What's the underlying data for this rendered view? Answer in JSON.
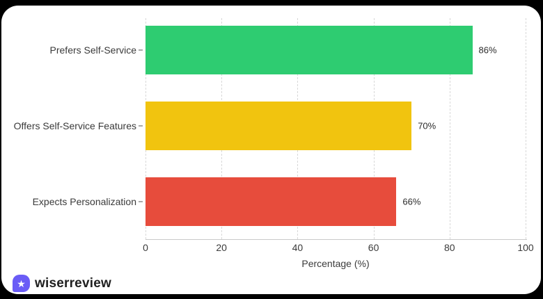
{
  "page": {
    "background": "#000000",
    "card_background": "#ffffff"
  },
  "chart_data": {
    "type": "bar",
    "orientation": "horizontal",
    "title": "",
    "xlabel": "Percentage (%)",
    "ylabel": "",
    "categories": [
      "Prefers Self-Service",
      "Offers Self-Service Features",
      "Expects Personalization"
    ],
    "values": [
      86,
      70,
      66
    ],
    "value_labels": [
      "86%",
      "70%",
      "66%"
    ],
    "bar_colors": [
      "#2ecc71",
      "#f1c40f",
      "#e74c3c"
    ],
    "xlim": [
      0,
      100
    ],
    "x_ticks": [
      0,
      20,
      40,
      60,
      80,
      100
    ],
    "grid": "vertical-dashed",
    "gridline_color": "#d8d8d8",
    "axis_line_color": "#c9c9c9",
    "tick_label_color": "#3a3a3a",
    "legend": "none"
  },
  "footer": {
    "brand": "wiserreview",
    "logo_glyph": "★",
    "logo_color": "#6a5cf6"
  }
}
